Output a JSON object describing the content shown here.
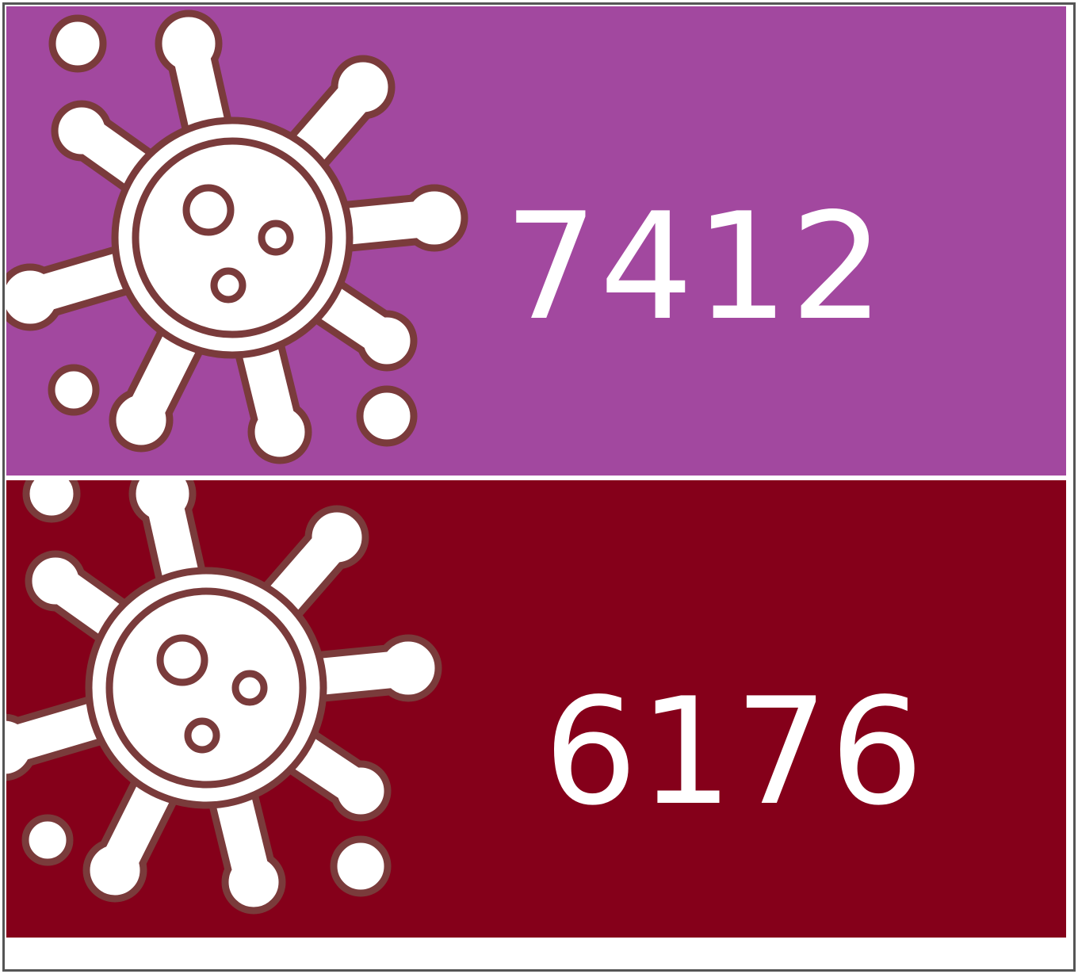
{
  "tiles": [
    {
      "value": 7412
    },
    {
      "value": 6176
    }
  ]
}
